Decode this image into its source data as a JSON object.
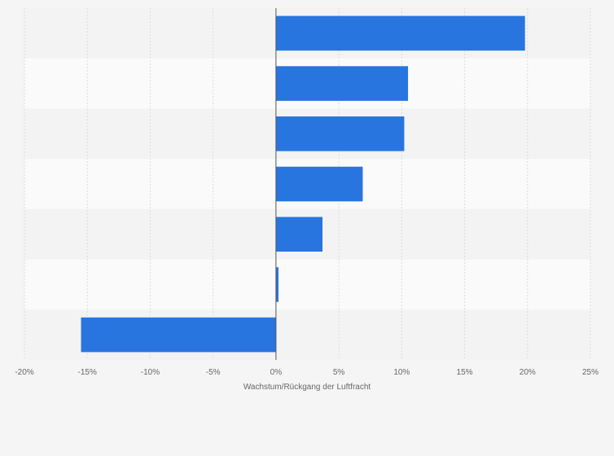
{
  "chart_data": {
    "type": "bar",
    "orientation": "horizontal",
    "categories": [
      "",
      "",
      "",
      "",
      "",
      "",
      ""
    ],
    "values": [
      19.8,
      10.5,
      10.2,
      6.9,
      3.7,
      0.2,
      -15.5
    ],
    "value_unit": "%",
    "xlabel": "Wachstum/Rückgang der Luftfracht",
    "ylabel": "",
    "xlim": [
      -20,
      25
    ],
    "x_ticks": [
      -20,
      -15,
      -10,
      -5,
      0,
      5,
      10,
      15,
      20,
      25
    ],
    "x_tick_labels": [
      "-20%",
      "-15%",
      "-10%",
      "-5%",
      "0%",
      "5%",
      "10%",
      "15%",
      "20%",
      "25%"
    ],
    "grid": "vertical-dashed",
    "legend": "none",
    "colors": {
      "bar": "#2875e0",
      "band_light": "#fafafa",
      "band_dark": "#f3f3f3",
      "background": "#f5f5f5",
      "grid": "#dcdcdc",
      "zero_line": "#555555",
      "text": "#666666"
    }
  }
}
